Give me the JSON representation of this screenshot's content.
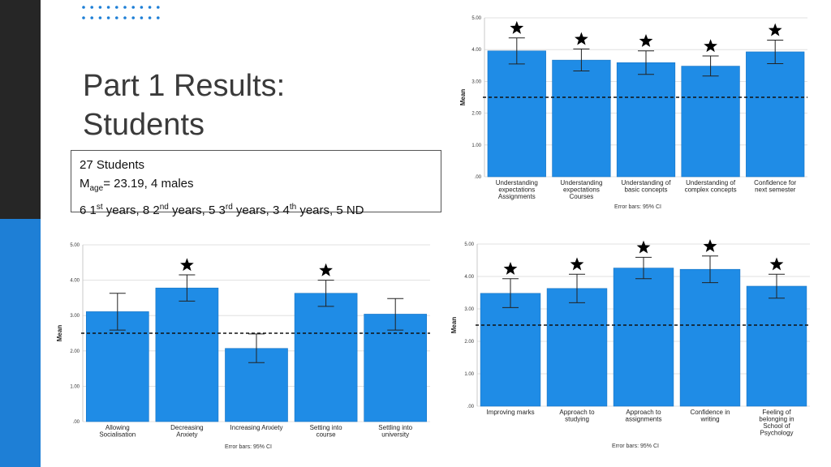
{
  "slide": {
    "title_line1": "Part 1 Results:",
    "title_line2": "Students",
    "info": {
      "line1": "27 Students",
      "mage_prefix": "M",
      "mage_sub": "age",
      "mage_rest": "= 23.19, 4 males",
      "years": [
        {
          "num": "6 1",
          "sup": "st",
          "rest": " years, "
        },
        {
          "num": "8 2",
          "sup": "nd",
          "rest": " years, "
        },
        {
          "num": "5 3",
          "sup": "rd",
          "rest": " years, "
        },
        {
          "num": "3 4",
          "sup": "th",
          "rest": " years, 5 ND"
        }
      ]
    }
  },
  "colors": {
    "bar": "#1f8ce6",
    "bar_border": "#1672c2",
    "sidebar_dark": "#262626",
    "sidebar_blue": "#1e7fd6",
    "dots": "#1e7fd6"
  },
  "chart_data": [
    {
      "type": "bar",
      "ylabel": "Mean",
      "ylim": [
        0,
        5
      ],
      "yticks": [
        ".00",
        "1.00",
        "2.00",
        "3.00",
        "4.00",
        "5.00"
      ],
      "categories": [
        [
          "Understanding",
          "expectations",
          "Assignments"
        ],
        [
          "Understanding",
          "expectations",
          "Courses"
        ],
        [
          "Understanding of",
          "basic concepts"
        ],
        [
          "Understanding of",
          "complex concepts"
        ],
        [
          "Confidence for",
          "next semester"
        ]
      ],
      "values": [
        3.96,
        3.67,
        3.59,
        3.48,
        3.93
      ],
      "ci_low": [
        3.55,
        3.33,
        3.22,
        3.17,
        3.56
      ],
      "ci_high": [
        4.37,
        4.02,
        3.96,
        3.8,
        4.3
      ],
      "stars": [
        true,
        true,
        true,
        true,
        true
      ],
      "reference_line": 2.5,
      "footnote": "Error bars: 95% CI"
    },
    {
      "type": "bar",
      "ylabel": "Mean",
      "ylim": [
        0,
        5
      ],
      "yticks": [
        ".00",
        "1.00",
        "2.00",
        "3.00",
        "4.00",
        "5.00"
      ],
      "categories": [
        [
          "Allowing",
          "Socialisation"
        ],
        [
          "Decreasing",
          "Anxiety"
        ],
        [
          "Increasing Anxiety"
        ],
        [
          "Setting into",
          "course"
        ],
        [
          "Settling into",
          "university"
        ]
      ],
      "values": [
        3.11,
        3.78,
        2.07,
        3.63,
        3.04
      ],
      "ci_low": [
        2.59,
        3.41,
        1.67,
        3.26,
        2.59
      ],
      "ci_high": [
        3.63,
        4.15,
        2.48,
        4.0,
        3.48
      ],
      "stars": [
        false,
        true,
        false,
        true,
        false
      ],
      "reference_line": 2.5,
      "footnote": "Error bars: 95% CI"
    },
    {
      "type": "bar",
      "ylabel": "Mean",
      "ylim": [
        0,
        5
      ],
      "yticks": [
        ".00",
        "1.00",
        "2.00",
        "3.00",
        "4.00",
        "5.00"
      ],
      "categories": [
        [
          "Improving marks"
        ],
        [
          "Approach to",
          "studying"
        ],
        [
          "Approach to",
          "assignments"
        ],
        [
          "Confidence in",
          "writing"
        ],
        [
          "Feeling of",
          "belonging in",
          "School of",
          "Psychology"
        ]
      ],
      "values": [
        3.48,
        3.63,
        4.26,
        4.22,
        3.7
      ],
      "ci_low": [
        3.04,
        3.19,
        3.93,
        3.81,
        3.33
      ],
      "ci_high": [
        3.93,
        4.07,
        4.59,
        4.63,
        4.07
      ],
      "stars": [
        true,
        true,
        true,
        true,
        true
      ],
      "reference_line": 2.5,
      "footnote": "Error bars: 95% CI"
    }
  ]
}
